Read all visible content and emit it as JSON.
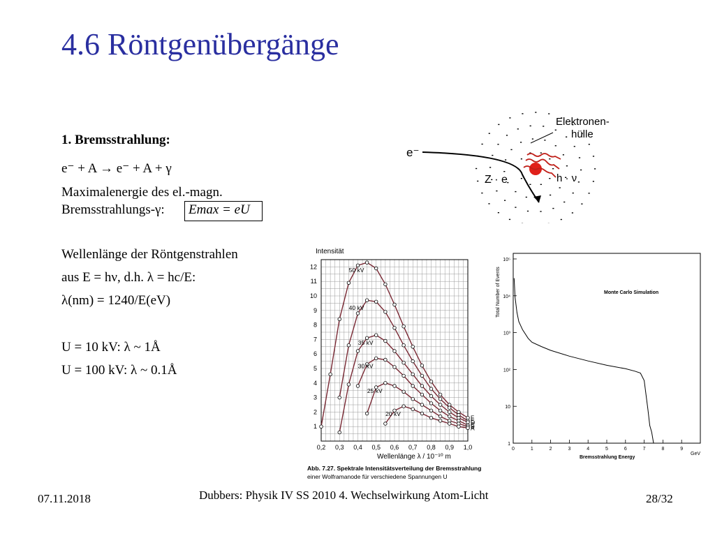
{
  "title": "4.6 Röntgenübergänge",
  "section": {
    "heading": "1. Bremsstrahlung:",
    "reaction": "e⁻ + A → e⁻ + A + γ",
    "max_energy_line1": "Maximalenergie des el.-magn.",
    "max_energy_line2_prefix": "Bremsstrahlungs-γ: ",
    "max_energy_formula": "Emax = eU",
    "wavelength_line1": "Wellenlänge der Röntgenstrahlen",
    "wavelength_line2": "aus E = hν, d.h. λ = hc/E:",
    "wavelength_line3": "λ(nm) = 1240/E(eV)",
    "example_1": "U = 10 kV:   λ ~ 1Å",
    "example_2": "U = 100 kV: λ ~ 0.1Å"
  },
  "atom_diagram": {
    "electron_label": "e⁻",
    "nucleus_label": "Z · e",
    "shell_label": "Elektronen-\nhülle",
    "photon_label": "h · ν",
    "colors": {
      "nucleus": "#e0201a",
      "photon_arrows": "#c0201a"
    }
  },
  "chart_left": {
    "title": "",
    "ylabel": "Intensität",
    "xlabel": "Wellenlänge  λ / 10⁻¹⁰ m",
    "x_ticks": [
      "0,2",
      "0,3",
      "0,4",
      "0,5",
      "0,6",
      "0,7",
      "0,8",
      "0,9",
      "1,0"
    ],
    "y_ticks": [
      "1",
      "2",
      "3",
      "4",
      "5",
      "6",
      "7",
      "8",
      "9",
      "10",
      "11",
      "12"
    ],
    "curve_labels": [
      "50 kV",
      "40 kV",
      "35 kV",
      "30 kV",
      "25 kV",
      "20 kV"
    ],
    "line_labels": [
      "F",
      "E",
      "D",
      "C",
      "B",
      "A"
    ],
    "caption_line1": "Abb. 7.27. Spektrale Intensitätsverteilung der Bremsstrahlung",
    "caption_line2": "einer Wolframanode für verschiedene Spannungen U"
  },
  "chart_right": {
    "annotation": "Monte Carlo Simulation",
    "ylabel": "Total Number of Events",
    "xlabel": "Bremsstrahlung Energy",
    "x_unit": "GeV",
    "x_ticks": [
      "0",
      "1",
      "2",
      "3",
      "4",
      "5",
      "6",
      "7",
      "8",
      "9"
    ],
    "y_ticks": [
      "1",
      "10",
      "10²",
      "10³",
      "10⁴",
      "10⁵"
    ]
  },
  "chart_data": [
    {
      "type": "line",
      "title": "",
      "xlabel": "Wellenlänge λ / 10⁻¹⁰ m",
      "ylabel": "Intensität",
      "xlim": [
        0.2,
        1.0
      ],
      "ylim": [
        0,
        12.5
      ],
      "x": [
        0.2,
        0.25,
        0.3,
        0.35,
        0.4,
        0.45,
        0.5,
        0.55,
        0.6,
        0.65,
        0.7,
        0.75,
        0.8,
        0.85,
        0.9,
        0.95,
        1.0
      ],
      "series": [
        {
          "name": "50 kV",
          "values": [
            1.0,
            4.6,
            8.4,
            10.9,
            12.1,
            12.3,
            11.9,
            10.8,
            9.4,
            7.9,
            6.5,
            5.2,
            4.1,
            3.2,
            2.5,
            2.0,
            1.6
          ]
        },
        {
          "name": "40 kV",
          "values": [
            null,
            null,
            3.0,
            6.6,
            8.8,
            9.7,
            9.6,
            8.9,
            7.8,
            6.6,
            5.5,
            4.5,
            3.6,
            2.9,
            2.3,
            1.8,
            1.4
          ]
        },
        {
          "name": "35 kV",
          "values": [
            null,
            null,
            0.6,
            3.9,
            6.2,
            7.1,
            7.3,
            6.9,
            6.2,
            5.4,
            4.6,
            3.8,
            3.1,
            2.5,
            2.0,
            1.6,
            1.3
          ]
        },
        {
          "name": "30 kV",
          "values": [
            null,
            null,
            null,
            null,
            3.8,
            5.3,
            5.7,
            5.6,
            5.1,
            4.5,
            3.8,
            3.2,
            2.6,
            2.1,
            1.7,
            1.4,
            1.1
          ]
        },
        {
          "name": "25 kV",
          "values": [
            null,
            null,
            null,
            null,
            null,
            1.9,
            3.7,
            4.0,
            3.8,
            3.4,
            2.9,
            2.5,
            2.1,
            1.7,
            1.4,
            1.2,
            1.0
          ]
        },
        {
          "name": "20 kV",
          "values": [
            null,
            null,
            null,
            null,
            null,
            null,
            null,
            1.2,
            2.1,
            2.4,
            2.2,
            1.9,
            1.6,
            1.4,
            1.2,
            1.0,
            0.9
          ]
        }
      ]
    },
    {
      "type": "line",
      "title": "Monte Carlo Simulation",
      "xlabel": "Bremsstrahlung Energy",
      "ylabel": "Total Number of Events",
      "x_unit": "GeV",
      "log_y": true,
      "xlim": [
        0,
        10
      ],
      "ylim": [
        1,
        100000
      ],
      "x": [
        0.05,
        0.1,
        0.2,
        0.3,
        0.5,
        0.8,
        1.0,
        1.5,
        2.0,
        3.0,
        4.0,
        5.0,
        6.0,
        6.5,
        6.8,
        7.0,
        7.1,
        7.2,
        7.3,
        7.4,
        7.5
      ],
      "values": [
        30000,
        9000,
        3500,
        2000,
        1200,
        700,
        550,
        420,
        330,
        230,
        170,
        130,
        105,
        90,
        80,
        50,
        20,
        8,
        3,
        2,
        1
      ]
    }
  ],
  "footer": {
    "date": "07.11.2018",
    "center": "Dubbers: Physik IV SS 2010  4. Wechselwirkung Atom-Licht",
    "page": "28/32"
  }
}
